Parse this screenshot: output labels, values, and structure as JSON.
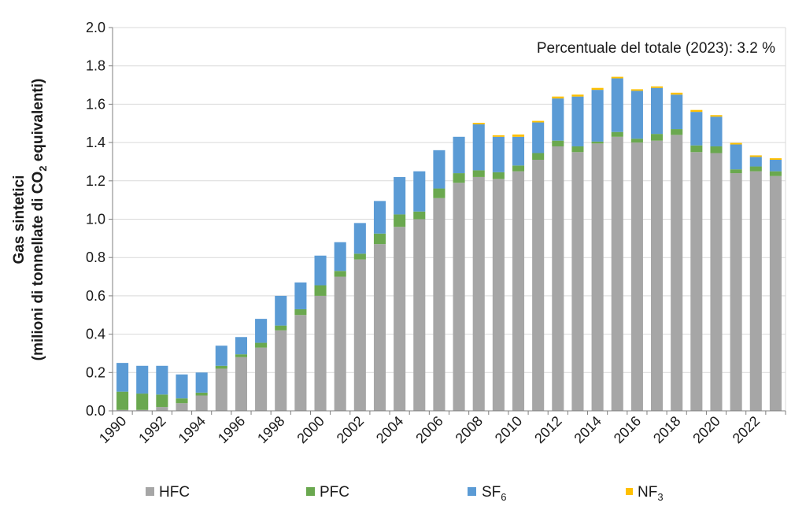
{
  "chart_data": {
    "type": "bar",
    "stacked": true,
    "annotation": "Percentuale  del totale  (2023):  3.2 %",
    "ylabel_line1": "Gas sintetici",
    "ylabel_line2_prefix": "(milioni di tonnellate di CO",
    "ylabel_line2_sub": "2",
    "ylabel_line2_suffix": " equivalenti)",
    "ylim": [
      0,
      2.0
    ],
    "ytick_values": [
      0,
      0.2,
      0.4,
      0.6,
      0.8,
      1.0,
      1.2,
      1.4,
      1.6,
      1.8,
      2.0
    ],
    "ytick_labels": [
      "0.0",
      "0.2",
      "0.4",
      "0.6",
      "0.8",
      "1.0",
      "1.2",
      "1.4",
      "1.6",
      "1.8",
      "2.0"
    ],
    "grid": true,
    "categories": [
      1990,
      1991,
      1992,
      1993,
      1994,
      1995,
      1996,
      1997,
      1998,
      1999,
      2000,
      2001,
      2002,
      2003,
      2004,
      2005,
      2006,
      2007,
      2008,
      2009,
      2010,
      2011,
      2012,
      2013,
      2014,
      2015,
      2016,
      2017,
      2018,
      2019,
      2020,
      2021,
      2022,
      2023
    ],
    "xtick_labels": [
      "1990",
      "1992",
      "1994",
      "1996",
      "1998",
      "2000",
      "2002",
      "2004",
      "2006",
      "2008",
      "2010",
      "2012",
      "2014",
      "2016",
      "2018",
      "2020",
      "2022"
    ],
    "series": [
      {
        "name": "HFC",
        "color": "#a6a6a6",
        "values": [
          0.005,
          0.005,
          0.02,
          0.04,
          0.08,
          0.22,
          0.28,
          0.33,
          0.42,
          0.5,
          0.6,
          0.7,
          0.79,
          0.87,
          0.96,
          1.0,
          1.11,
          1.19,
          1.22,
          1.21,
          1.25,
          1.31,
          1.38,
          1.35,
          1.395,
          1.43,
          1.4,
          1.41,
          1.44,
          1.35,
          1.345,
          1.24,
          1.25,
          1.225
        ]
      },
      {
        "name": "PFC",
        "color": "#6aa84f",
        "values": [
          0.095,
          0.085,
          0.065,
          0.025,
          0.015,
          0.015,
          0.015,
          0.025,
          0.025,
          0.03,
          0.055,
          0.03,
          0.03,
          0.055,
          0.065,
          0.04,
          0.05,
          0.05,
          0.035,
          0.035,
          0.03,
          0.035,
          0.03,
          0.03,
          0.01,
          0.025,
          0.02,
          0.035,
          0.03,
          0.035,
          0.035,
          0.02,
          0.025,
          0.025
        ]
      },
      {
        "name": "SF6",
        "label_main": "SF",
        "label_sub": "6",
        "color": "#5b9bd5",
        "values": [
          0.15,
          0.145,
          0.15,
          0.125,
          0.105,
          0.105,
          0.09,
          0.125,
          0.155,
          0.14,
          0.155,
          0.15,
          0.16,
          0.17,
          0.195,
          0.21,
          0.2,
          0.19,
          0.24,
          0.185,
          0.15,
          0.16,
          0.22,
          0.26,
          0.27,
          0.28,
          0.25,
          0.24,
          0.18,
          0.175,
          0.155,
          0.13,
          0.05,
          0.06
        ]
      },
      {
        "name": "NF3",
        "label_main": "NF",
        "label_sub": "3",
        "color": "#ffc000",
        "values": [
          0,
          0,
          0,
          0,
          0,
          0,
          0,
          0,
          0,
          0,
          0,
          0,
          0,
          0,
          0,
          0,
          0,
          0,
          0.008,
          0.008,
          0.012,
          0.008,
          0.01,
          0.01,
          0.01,
          0.008,
          0.008,
          0.008,
          0.01,
          0.01,
          0.008,
          0.008,
          0.008,
          0.008
        ]
      }
    ]
  }
}
